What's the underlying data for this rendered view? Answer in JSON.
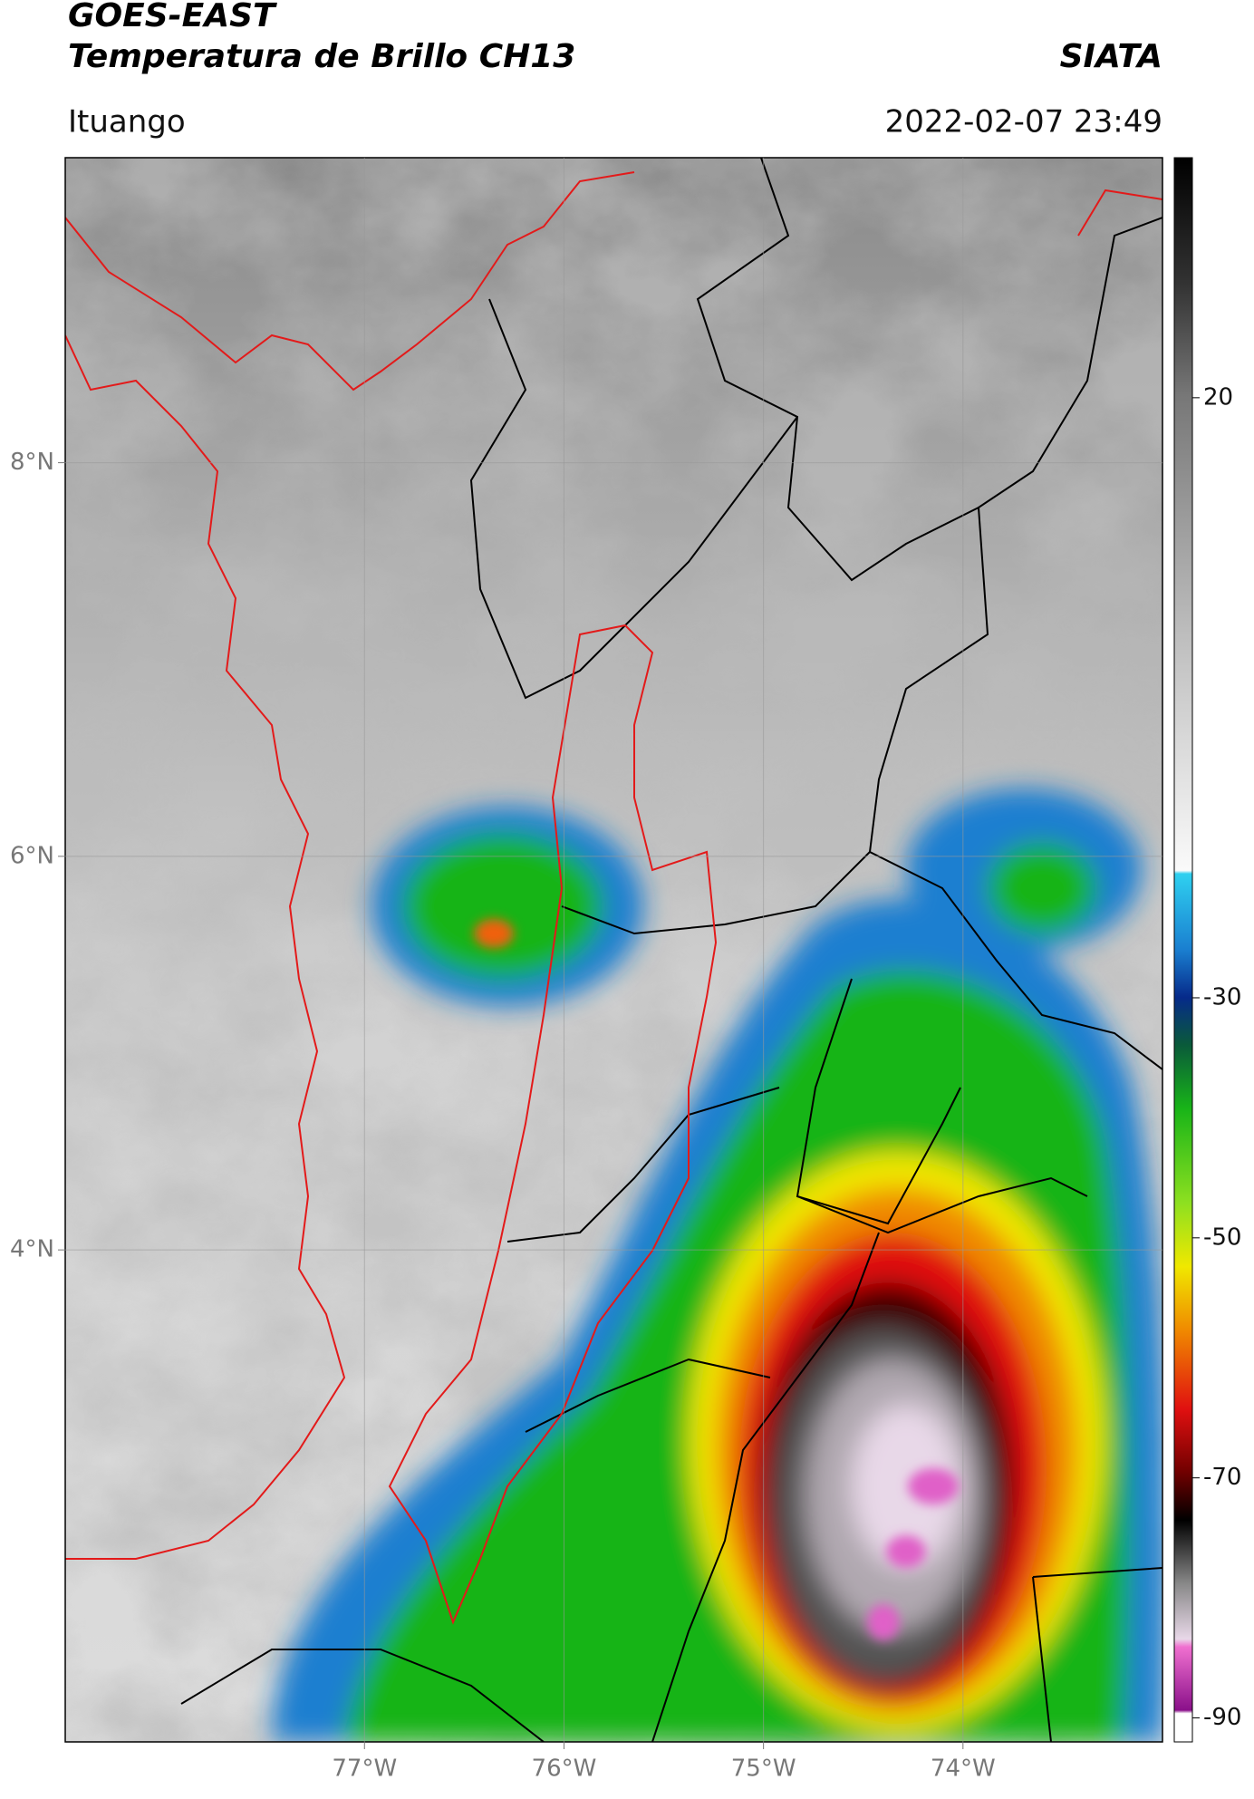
{
  "chart_data": {
    "type": "map",
    "title": "GOES-EAST",
    "subtitle": "Temperatura de Brillo CH13",
    "source": "SIATA",
    "location": "Ituango",
    "datetime": "2022-02-07 23:49",
    "xlim": [
      -78.5,
      -73.0
    ],
    "ylim": [
      1.5,
      9.55
    ],
    "xticks": [
      {
        "value": -77,
        "label": "77°W"
      },
      {
        "value": -76,
        "label": "76°W"
      },
      {
        "value": -75,
        "label": "75°W"
      },
      {
        "value": -74,
        "label": "74°W"
      }
    ],
    "yticks": [
      {
        "value": 8,
        "label": "8°N"
      },
      {
        "value": 6,
        "label": "6°N"
      },
      {
        "value": 4,
        "label": "4°N"
      }
    ],
    "grid": true,
    "colorbar": {
      "clim": [
        -92,
        40
      ],
      "ticks": [
        20,
        -30,
        -50,
        -70,
        -90
      ]
    }
  }
}
